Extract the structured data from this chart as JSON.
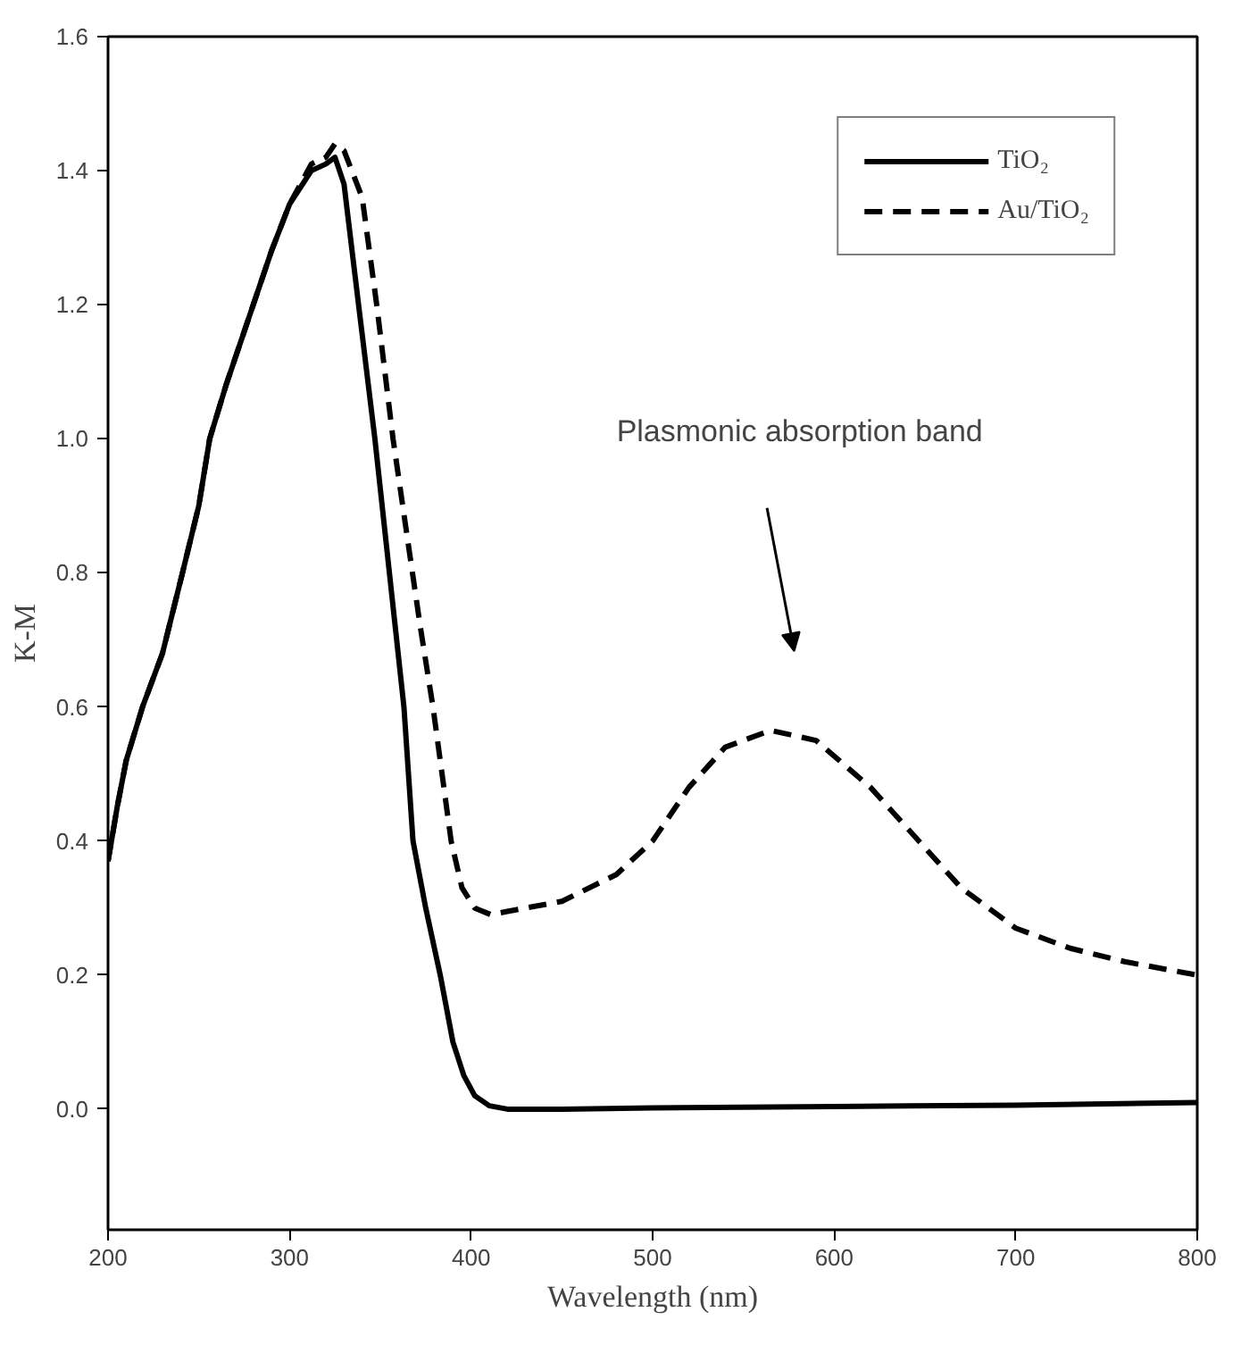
{
  "chart_data": {
    "type": "line",
    "xlabel": "Wavelength (nm)",
    "ylabel": "K-M",
    "xlim": [
      200,
      800
    ],
    "xticks": [
      200,
      300,
      400,
      500,
      600,
      700,
      800
    ],
    "ylim": [
      -0.18,
      1.6
    ],
    "yticks": [
      {
        "value": 0,
        "label": "0.0"
      },
      0.2,
      0.4,
      0.6,
      0.8,
      {
        "value": 1,
        "label": "1.0"
      },
      1.2,
      1.4,
      1.6
    ],
    "grid": false,
    "legend": "top right",
    "marker": "none",
    "series": [
      {
        "name": "TiO₂",
        "color": "#000000",
        "line_style": "solid",
        "x": [
          200,
          205,
          210,
          219,
          230,
          241,
          250,
          256,
          265,
          280,
          290,
          300,
          312,
          320,
          325,
          330,
          338,
          347,
          355,
          363,
          368,
          375,
          383,
          390,
          396,
          402,
          410,
          420,
          450,
          500,
          600,
          700,
          800
        ],
        "values": [
          0.37,
          0.45,
          0.52,
          0.6,
          0.68,
          0.8,
          0.9,
          1.0,
          1.08,
          1.2,
          1.28,
          1.35,
          1.4,
          1.41,
          1.42,
          1.38,
          1.2,
          1.0,
          0.8,
          0.6,
          0.4,
          0.3,
          0.2,
          0.1,
          0.05,
          0.02,
          0.005,
          0.0,
          0.0,
          0.002,
          0.004,
          0.006,
          0.01
        ]
      },
      {
        "name": "Au/TiO₂",
        "color": "#000000",
        "line_style": "dashed",
        "x": [
          200,
          205,
          210,
          219,
          230,
          241,
          250,
          256,
          265,
          280,
          290,
          300,
          312,
          320,
          325,
          330,
          340,
          348,
          357,
          365,
          372,
          379,
          385,
          389,
          395,
          402,
          411,
          420,
          450,
          480,
          500,
          520,
          540,
          565,
          590,
          620,
          650,
          670,
          700,
          730,
          760,
          800
        ],
        "values": [
          0.37,
          0.45,
          0.52,
          0.6,
          0.68,
          0.8,
          0.9,
          1.0,
          1.08,
          1.2,
          1.28,
          1.35,
          1.41,
          1.42,
          1.44,
          1.43,
          1.36,
          1.2,
          1.0,
          0.85,
          0.72,
          0.6,
          0.48,
          0.4,
          0.33,
          0.3,
          0.29,
          0.295,
          0.31,
          0.35,
          0.4,
          0.48,
          0.54,
          0.565,
          0.55,
          0.48,
          0.39,
          0.33,
          0.27,
          0.24,
          0.22,
          0.2
        ]
      }
    ],
    "annotations": [
      "Plasmonic absorption band"
    ]
  }
}
